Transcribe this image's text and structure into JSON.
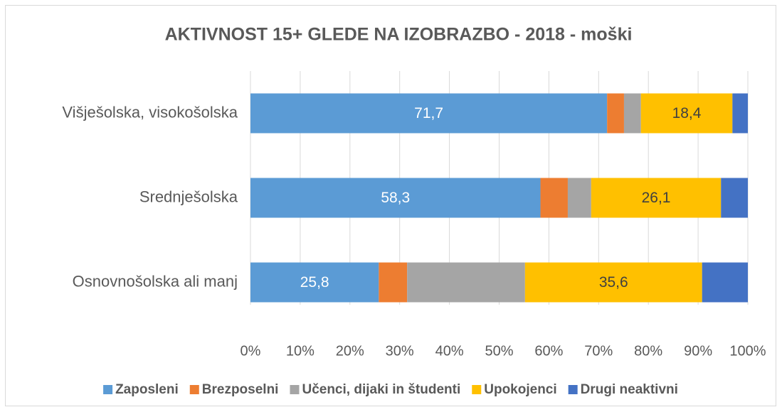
{
  "chart_data": {
    "type": "stacked-bar-horizontal",
    "title": "AKTIVNOST 15+ GLEDE NA IZOBRAZBO - 2018 - moški",
    "categories": [
      "Višješolska, visokošolska",
      "Srednješolska",
      "Osnovnošolska ali manj"
    ],
    "series": [
      {
        "name": "Zaposleni",
        "color": "#5b9bd5",
        "values": [
          71.7,
          58.3,
          25.8
        ],
        "value_labels": [
          "71,7",
          "58,3",
          "25,8"
        ]
      },
      {
        "name": "Brezposelni",
        "color": "#ed7d31",
        "values": [
          3.4,
          5.5,
          5.7
        ]
      },
      {
        "name": "Učenci, dijaki in študenti",
        "color": "#a5a5a5",
        "values": [
          3.4,
          4.7,
          23.7
        ]
      },
      {
        "name": "Upokojenci",
        "color": "#ffc000",
        "values": [
          18.4,
          26.1,
          35.6
        ],
        "value_labels": [
          "18,4",
          "26,1",
          "35,6"
        ]
      },
      {
        "name": "Drugi neaktivni",
        "color": "#4472c4",
        "values": [
          3.1,
          5.4,
          9.2
        ]
      }
    ],
    "xlim": [
      0,
      100
    ],
    "xticks": [
      {
        "value": 0,
        "label": "0%"
      },
      {
        "value": 10,
        "label": "10%"
      },
      {
        "value": 20,
        "label": "20%"
      },
      {
        "value": 30,
        "label": "30%"
      },
      {
        "value": 40,
        "label": "40%"
      },
      {
        "value": 50,
        "label": "50%"
      },
      {
        "value": 60,
        "label": "60%"
      },
      {
        "value": 70,
        "label": "70%"
      },
      {
        "value": 80,
        "label": "80%"
      },
      {
        "value": 90,
        "label": "90%"
      },
      {
        "value": 100,
        "label": "100%"
      }
    ],
    "grid": true,
    "legend": "bottom"
  }
}
